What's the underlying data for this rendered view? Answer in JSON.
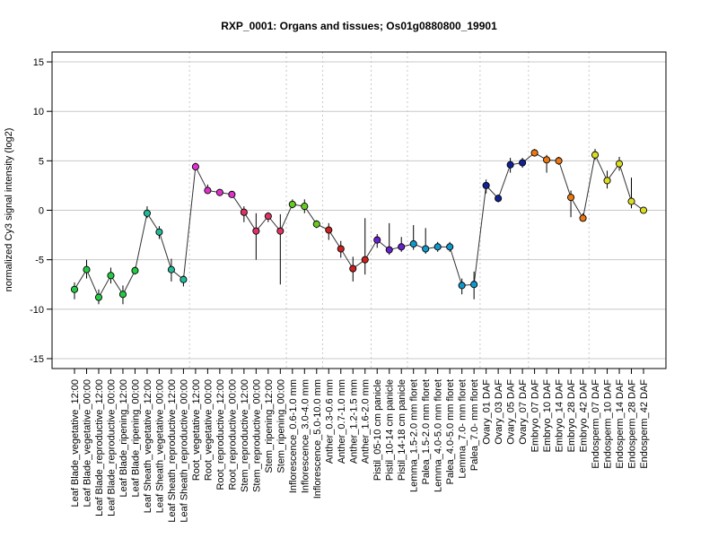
{
  "chart_data": {
    "type": "line",
    "title": "RXP_0001: Organs and tissues; Os01g0880800_19901",
    "ylabel": "normalized Cy3 signal intensity (log2)",
    "xlabel": "",
    "ylim": [
      -16,
      16
    ],
    "yticks": [
      -15,
      -10,
      -5,
      0,
      5,
      10,
      15
    ],
    "grid": true,
    "categories": [
      "Leaf Blade_vegetative_12:00",
      "Leaf Blade_vegetative_00:00",
      "Leaf Blade_reproductive_12:00",
      "Leaf Blade_reproductive_00:00",
      "Leaf Blade_ripening_12:00",
      "Leaf Blade_ripening_00:00",
      "Leaf Sheath_vegetative_12:00",
      "Leaf Sheath_vegetative_00:00",
      "Leaf Sheath_reproductive_12:00",
      "Leaf Sheath_reproductive_00:00",
      "Root_vegetative_12:00",
      "Root_vegetative_00:00",
      "Root_reproductive_12:00",
      "Root_reproductive_00:00",
      "Stem_reproductive_12:00",
      "Stem_reproductive_00:00",
      "Stem_ripening_12:00",
      "Stem_ripening_00:00",
      "Inflorescence_0.6-1.0 mm",
      "Inflorescence_3.0-4.0 mm",
      "Inflorescence_5.0-10.0 mm",
      "Anther_0.3-0.6 mm",
      "Anther_0.7-1.0 mm",
      "Anther_1.2-1.5 mm",
      "Anther_1.6-2.0 mm",
      "Pistil_05-10 cm panicle",
      "Pistil_10-14 cm panicle",
      "Pistil_14-18 cm panicle",
      "Lemma_1.5-2.0 mm floret",
      "Palea_1.5-2.0 mm floret",
      "Lemma_4.0-5.0 mm floret",
      "Palea_4.0-5.0 mm floret",
      "Lemma_7.0- mm floret",
      "Palea_7.0- mm floret",
      "Ovary_01 DAF",
      "Ovary_03 DAF",
      "Ovary_05 DAF",
      "Ovary_07 DAF",
      "Embryo_07 DAF",
      "Embryo_10 DAF",
      "Embryo_14 DAF",
      "Embryo_28 DAF",
      "Embryo_42 DAF",
      "Endosperm_07 DAF",
      "Endosperm_10 DAF",
      "Endosperm_14 DAF",
      "Endosperm_28 DAF",
      "Endosperm_42 DAF"
    ],
    "values": [
      -8.0,
      -6.0,
      -8.8,
      -6.6,
      -8.5,
      -6.1,
      -0.3,
      -2.2,
      -6.0,
      -7.0,
      4.4,
      2.0,
      1.8,
      1.6,
      -0.2,
      -2.1,
      -0.6,
      -2.1,
      0.6,
      0.4,
      -1.4,
      -2.0,
      -3.9,
      -5.9,
      -5.0,
      -3.0,
      -4.0,
      -3.7,
      -3.4,
      -3.9,
      -3.7,
      -3.7,
      -7.6,
      -7.5,
      2.5,
      1.2,
      4.6,
      4.8,
      5.8,
      5.1,
      5.0,
      1.3,
      -0.8,
      5.6,
      3.0,
      4.7,
      0.9,
      0.0
    ],
    "err_low": [
      -9.0,
      -6.9,
      -9.5,
      -7.4,
      -9.5,
      -6.5,
      -0.8,
      -2.9,
      -7.2,
      -7.7,
      4.1,
      1.7,
      1.6,
      1.3,
      -1.2,
      -5.0,
      -1.2,
      -7.5,
      0.2,
      -0.3,
      -1.8,
      -3.0,
      -4.8,
      -7.2,
      -6.5,
      -3.8,
      -4.5,
      -4.2,
      -4.0,
      -4.4,
      -4.2,
      -4.2,
      -8.5,
      -9.0,
      1.7,
      0.8,
      3.8,
      4.3,
      5.5,
      3.8,
      4.6,
      -0.7,
      -1.0,
      5.1,
      2.2,
      4.0,
      0.2,
      -0.2
    ],
    "err_high": [
      -7.3,
      -5.0,
      -8.0,
      -5.8,
      -7.6,
      -5.7,
      0.4,
      -1.6,
      -4.9,
      -6.6,
      4.8,
      2.6,
      2.1,
      1.9,
      0.4,
      -0.3,
      -0.2,
      -0.4,
      1.1,
      1.1,
      -1.0,
      -1.3,
      -3.1,
      -4.7,
      -0.8,
      -2.4,
      -1.3,
      -2.7,
      -1.5,
      -1.8,
      -3.2,
      -3.2,
      -6.9,
      -6.2,
      3.1,
      1.6,
      5.3,
      5.3,
      6.2,
      5.6,
      5.4,
      2.0,
      -0.3,
      6.2,
      4.0,
      5.4,
      3.3,
      0.2
    ],
    "colors": [
      "#22cc44",
      "#22cc44",
      "#22cc44",
      "#22cc44",
      "#22cc44",
      "#22cc44",
      "#22bb99",
      "#22bb99",
      "#22bb99",
      "#22bb99",
      "#dd33cc",
      "#dd33cc",
      "#dd33cc",
      "#dd33cc",
      "#dd3366",
      "#dd3366",
      "#dd3366",
      "#dd3366",
      "#66cc22",
      "#66cc22",
      "#66cc22",
      "#cc2222",
      "#cc2222",
      "#cc2222",
      "#cc2222",
      "#6622cc",
      "#6622cc",
      "#6622cc",
      "#1199cc",
      "#1199cc",
      "#1199cc",
      "#1199cc",
      "#1199cc",
      "#1199cc",
      "#112299",
      "#112299",
      "#112299",
      "#112299",
      "#ee7711",
      "#ee7711",
      "#ee7711",
      "#ee7711",
      "#ee7711",
      "#dddd22",
      "#dddd22",
      "#dddd22",
      "#dddd22",
      "#dddd22"
    ],
    "vertical_separators_after_index": [
      9,
      17,
      20,
      24,
      27,
      33,
      37,
      42
    ]
  }
}
